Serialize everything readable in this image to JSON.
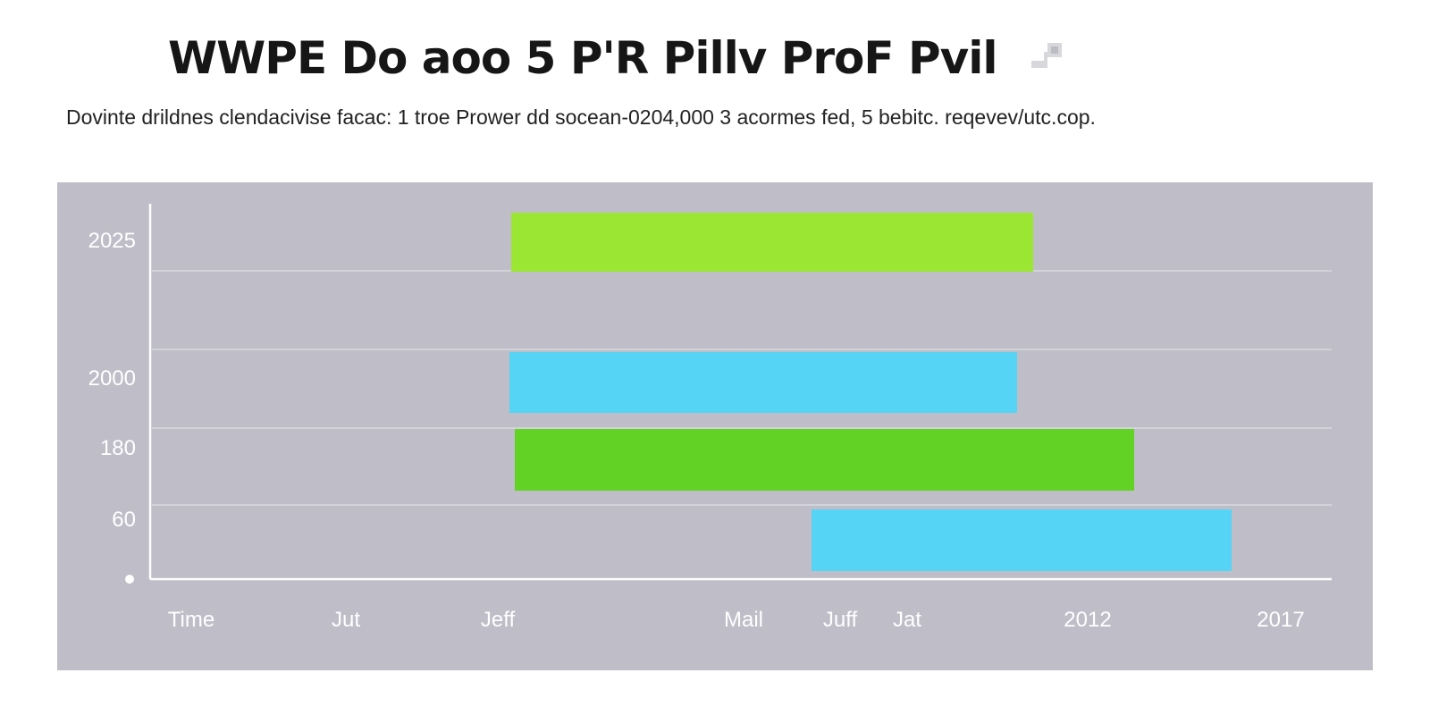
{
  "title": "WWPE Do aoo 5 P'R Pillv ProF Pvil",
  "subtitle": "Dovinte drildnes clendacivise facac: 1 troe Prower dd socean-0204,000 3 acormes fed, 5 bebitc. reqevev/utc.cop.",
  "colors": {
    "panel": "#bfbec8",
    "light_green": "#9be632",
    "cyan": "#56d4f5",
    "green": "#62d224",
    "axis": "#ffffff",
    "grid": "#d9d8e0"
  },
  "chart_data": {
    "type": "bar",
    "orientation": "horizontal",
    "title": "WWPE Do aoo 5 P'R Pillv ProF Pvil",
    "subtitle": "Dovinte drildnes clendacivise facac: 1 troe Prower dd socean-0204,000 3 acormes fed, 5 bebitc. reqevev/utc.cop.",
    "y_tick_labels": [
      "2025",
      "2000",
      "180",
      "60",
      "•"
    ],
    "x_tick_labels": [
      "Time",
      "Jut",
      "Jeff",
      "Mail",
      "Juff",
      "Jat",
      "2012",
      "2017"
    ],
    "grid": true,
    "bars": [
      {
        "row": "2025",
        "start": "Jeff",
        "end": "between Jat and 2012",
        "color": "#9be632"
      },
      {
        "row": "2000",
        "start": "Jeff",
        "end": "between Jat and 2012",
        "color": "#56d4f5"
      },
      {
        "row": "180",
        "start": "Jeff",
        "end": "2012",
        "color": "#62d224"
      },
      {
        "row": "60",
        "start": "Juff",
        "end": "2017",
        "color": "#56d4f5"
      }
    ]
  }
}
